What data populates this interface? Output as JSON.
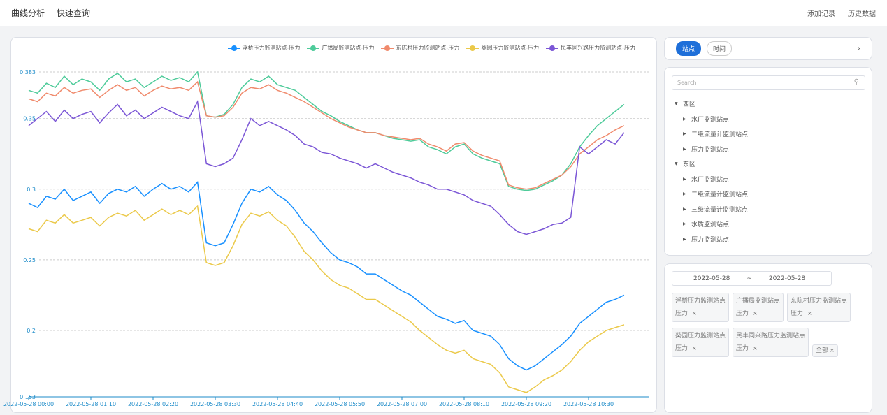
{
  "topbar": {
    "nav": [
      "曲线分析",
      "快速查询"
    ],
    "actions": [
      "添加记录",
      "历史数据"
    ]
  },
  "tabs": {
    "items": [
      "站点",
      "时间"
    ],
    "active": 0
  },
  "tree": {
    "search_placeholder": "Search",
    "groups": [
      {
        "label": "西区",
        "children": [
          "水厂监测站点",
          "二级流量计监测站点",
          "压力监测站点"
        ]
      },
      {
        "label": "东区",
        "children": [
          "水厂监测站点",
          "二级流量计监测站点",
          "三级流量计监测站点",
          "水质监测站点",
          "压力监测站点"
        ]
      }
    ]
  },
  "filter": {
    "date_start": "2022-05-28",
    "date_sep": "~",
    "date_end": "2022-05-28",
    "tags": [
      {
        "station": "浮桥压力监测站点",
        "metric": "压力"
      },
      {
        "station": "广播局监测站点",
        "metric": "压力"
      },
      {
        "station": "东陈村压力监测站点",
        "metric": "压力"
      },
      {
        "station": "葵园压力监测站点",
        "metric": "压力"
      },
      {
        "station": "民丰同兴路压力监测站点",
        "metric": "压力"
      }
    ],
    "all_label": "全部",
    "close": "×"
  },
  "chart_data": {
    "type": "line",
    "title": "",
    "xlabel": "",
    "ylabel": "",
    "ylim": [
      0.153,
      0.383
    ],
    "yticks": [
      0.153,
      0.2,
      0.25,
      0.3,
      0.35,
      0.383
    ],
    "xticks": [
      "2022-05-28 00:00",
      "2022-05-28 01:10",
      "2022-05-28 02:20",
      "2022-05-28 03:30",
      "2022-05-28 04:40",
      "2022-05-28 05:50",
      "2022-05-28 07:00",
      "2022-05-28 08:10",
      "2022-05-28 09:20",
      "2022-05-28 10:30"
    ],
    "x_minutes_step": 10,
    "grid": true,
    "legend_position": "top-right",
    "series": [
      {
        "name": "浮桥压力监测站点-压力",
        "color": "#1890ff",
        "values": [
          0.29,
          0.287,
          0.295,
          0.293,
          0.3,
          0.292,
          0.295,
          0.298,
          0.29,
          0.297,
          0.3,
          0.298,
          0.302,
          0.295,
          0.3,
          0.304,
          0.3,
          0.302,
          0.298,
          0.305,
          0.262,
          0.26,
          0.262,
          0.275,
          0.29,
          0.3,
          0.298,
          0.302,
          0.296,
          0.292,
          0.285,
          0.276,
          0.27,
          0.262,
          0.255,
          0.25,
          0.248,
          0.245,
          0.24,
          0.24,
          0.236,
          0.232,
          0.228,
          0.225,
          0.22,
          0.215,
          0.21,
          0.208,
          0.205,
          0.207,
          0.2,
          0.198,
          0.196,
          0.19,
          0.18,
          0.175,
          0.172,
          0.175,
          0.18,
          0.185,
          0.19,
          0.196,
          0.205,
          0.21,
          0.215,
          0.22,
          0.222,
          0.225
        ]
      },
      {
        "name": "广播局监测站点-压力",
        "color": "#4ecb9a",
        "values": [
          0.37,
          0.368,
          0.375,
          0.372,
          0.38,
          0.374,
          0.378,
          0.376,
          0.37,
          0.378,
          0.382,
          0.376,
          0.378,
          0.372,
          0.376,
          0.38,
          0.377,
          0.379,
          0.376,
          0.383,
          0.352,
          0.351,
          0.353,
          0.36,
          0.372,
          0.378,
          0.376,
          0.38,
          0.374,
          0.372,
          0.37,
          0.365,
          0.36,
          0.355,
          0.352,
          0.348,
          0.345,
          0.342,
          0.34,
          0.34,
          0.338,
          0.336,
          0.335,
          0.334,
          0.335,
          0.33,
          0.328,
          0.325,
          0.33,
          0.332,
          0.325,
          0.322,
          0.32,
          0.318,
          0.302,
          0.3,
          0.299,
          0.3,
          0.303,
          0.306,
          0.31,
          0.318,
          0.33,
          0.338,
          0.345,
          0.35,
          0.355,
          0.36
        ]
      },
      {
        "name": "东陈村压力监测站点-压力",
        "color": "#f08a6c",
        "values": [
          0.364,
          0.362,
          0.368,
          0.366,
          0.372,
          0.368,
          0.37,
          0.371,
          0.365,
          0.37,
          0.374,
          0.37,
          0.372,
          0.366,
          0.37,
          0.373,
          0.371,
          0.372,
          0.37,
          0.376,
          0.352,
          0.351,
          0.352,
          0.358,
          0.368,
          0.372,
          0.371,
          0.374,
          0.37,
          0.368,
          0.365,
          0.362,
          0.358,
          0.354,
          0.35,
          0.347,
          0.344,
          0.342,
          0.34,
          0.34,
          0.338,
          0.337,
          0.336,
          0.335,
          0.336,
          0.332,
          0.33,
          0.327,
          0.332,
          0.333,
          0.327,
          0.324,
          0.322,
          0.32,
          0.303,
          0.301,
          0.3,
          0.301,
          0.304,
          0.307,
          0.31,
          0.316,
          0.325,
          0.33,
          0.335,
          0.338,
          0.342,
          0.345
        ]
      },
      {
        "name": "葵园压力监测站点-压力",
        "color": "#ebc94a",
        "values": [
          0.272,
          0.27,
          0.278,
          0.276,
          0.282,
          0.276,
          0.278,
          0.28,
          0.274,
          0.28,
          0.283,
          0.281,
          0.285,
          0.278,
          0.282,
          0.286,
          0.282,
          0.285,
          0.282,
          0.288,
          0.248,
          0.246,
          0.248,
          0.26,
          0.275,
          0.283,
          0.281,
          0.284,
          0.278,
          0.274,
          0.266,
          0.256,
          0.25,
          0.242,
          0.236,
          0.232,
          0.23,
          0.226,
          0.222,
          0.222,
          0.218,
          0.214,
          0.21,
          0.206,
          0.2,
          0.195,
          0.19,
          0.186,
          0.184,
          0.186,
          0.18,
          0.178,
          0.176,
          0.17,
          0.16,
          0.158,
          0.156,
          0.16,
          0.165,
          0.168,
          0.172,
          0.178,
          0.186,
          0.192,
          0.196,
          0.2,
          0.202,
          0.204
        ]
      },
      {
        "name": "民丰同兴路压力监测站点-压力",
        "color": "#7b56d6",
        "values": [
          0.345,
          0.35,
          0.355,
          0.348,
          0.356,
          0.35,
          0.353,
          0.355,
          0.347,
          0.354,
          0.36,
          0.352,
          0.356,
          0.35,
          0.354,
          0.358,
          0.355,
          0.352,
          0.35,
          0.362,
          0.318,
          0.316,
          0.318,
          0.322,
          0.335,
          0.35,
          0.345,
          0.348,
          0.345,
          0.342,
          0.338,
          0.332,
          0.33,
          0.326,
          0.325,
          0.322,
          0.32,
          0.318,
          0.315,
          0.318,
          0.315,
          0.312,
          0.31,
          0.308,
          0.305,
          0.303,
          0.3,
          0.3,
          0.298,
          0.296,
          0.292,
          0.29,
          0.288,
          0.282,
          0.275,
          0.27,
          0.268,
          0.27,
          0.272,
          0.275,
          0.276,
          0.28,
          0.33,
          0.325,
          0.33,
          0.335,
          0.332,
          0.34
        ]
      }
    ]
  }
}
